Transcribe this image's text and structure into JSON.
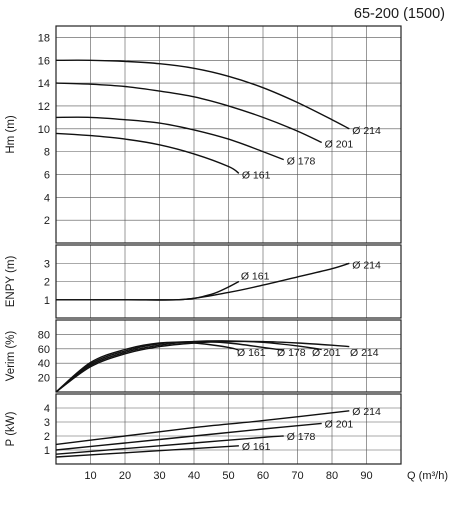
{
  "chart_data": [
    {
      "type": "line",
      "title": "65-200 (1500)",
      "ylabel": "Hm (m)",
      "xlim": [
        0,
        100
      ],
      "ylim": [
        0,
        19
      ],
      "y_ticks": [
        2,
        4,
        6,
        8,
        10,
        12,
        14,
        16,
        18
      ],
      "grid": true,
      "series": [
        {
          "name": "Ø 214",
          "x": [
            0,
            10,
            20,
            30,
            40,
            50,
            60,
            70,
            80,
            85
          ],
          "y": [
            16,
            16,
            15.9,
            15.7,
            15.3,
            14.6,
            13.6,
            12.3,
            10.8,
            10
          ]
        },
        {
          "name": "Ø 201",
          "x": [
            0,
            10,
            20,
            30,
            40,
            50,
            60,
            70,
            77
          ],
          "y": [
            14,
            13.9,
            13.7,
            13.3,
            12.8,
            12,
            11,
            9.8,
            8.8
          ]
        },
        {
          "name": "Ø 178",
          "x": [
            0,
            10,
            20,
            30,
            40,
            50,
            60,
            66
          ],
          "y": [
            11,
            11,
            10.8,
            10.5,
            9.9,
            9.1,
            8,
            7.3
          ]
        },
        {
          "name": "Ø 161",
          "x": [
            0,
            10,
            20,
            30,
            40,
            50,
            53
          ],
          "y": [
            9.6,
            9.4,
            9.1,
            8.6,
            7.8,
            6.7,
            6.1
          ]
        }
      ]
    },
    {
      "type": "line",
      "ylabel": "ENPY (m)",
      "xlim": [
        0,
        100
      ],
      "ylim": [
        0,
        4
      ],
      "y_ticks": [
        1,
        2,
        3
      ],
      "grid": true,
      "series": [
        {
          "name": "Ø 214",
          "x": [
            0,
            20,
            37,
            50,
            60,
            70,
            80,
            85
          ],
          "y": [
            1,
            1,
            1.02,
            1.4,
            1.8,
            2.25,
            2.7,
            3
          ]
        },
        {
          "name": "Ø 161",
          "x": [
            0,
            20,
            37,
            45,
            50,
            53
          ],
          "y": [
            1,
            1,
            1.02,
            1.3,
            1.7,
            2
          ]
        }
      ]
    },
    {
      "type": "line",
      "ylabel": "Verim (%)",
      "xlim": [
        0,
        100
      ],
      "ylim": [
        0,
        100
      ],
      "y_ticks": [
        20,
        40,
        60,
        80
      ],
      "grid": true,
      "series": [
        {
          "name": "Ø 214",
          "x": [
            0,
            10,
            20,
            30,
            40,
            50,
            60,
            70,
            80,
            85
          ],
          "y": [
            0,
            35,
            53,
            63,
            68,
            70,
            70,
            68,
            65,
            63
          ]
        },
        {
          "name": "Ø 201",
          "x": [
            0,
            10,
            20,
            30,
            40,
            50,
            60,
            70,
            77
          ],
          "y": [
            0,
            37,
            55,
            65,
            70,
            71,
            69,
            64,
            59
          ]
        },
        {
          "name": "Ø 178",
          "x": [
            0,
            10,
            20,
            30,
            40,
            50,
            60,
            66
          ],
          "y": [
            0,
            39,
            57,
            67,
            70,
            68,
            62,
            58
          ]
        },
        {
          "name": "Ø 161",
          "x": [
            0,
            10,
            20,
            30,
            40,
            50,
            53
          ],
          "y": [
            0,
            41,
            59,
            68,
            68,
            62,
            58
          ]
        }
      ]
    },
    {
      "type": "line",
      "ylabel": "P (kW)",
      "xlabel": "Q (m³/h)",
      "xlim": [
        0,
        100
      ],
      "ylim": [
        0,
        5
      ],
      "y_ticks": [
        1,
        2,
        3,
        4
      ],
      "x_ticks": [
        10,
        20,
        30,
        40,
        50,
        60,
        70,
        80,
        90
      ],
      "grid": true,
      "series": [
        {
          "name": "Ø 214",
          "x": [
            0,
            20,
            40,
            60,
            85
          ],
          "y": [
            1.4,
            2.0,
            2.6,
            3.1,
            3.8
          ]
        },
        {
          "name": "Ø 201",
          "x": [
            0,
            20,
            40,
            60,
            77
          ],
          "y": [
            1.0,
            1.5,
            2.0,
            2.5,
            2.9
          ]
        },
        {
          "name": "Ø 178",
          "x": [
            0,
            20,
            40,
            60,
            66
          ],
          "y": [
            0.7,
            1.1,
            1.5,
            1.9,
            2.0
          ]
        },
        {
          "name": "Ø 161",
          "x": [
            0,
            20,
            40,
            53
          ],
          "y": [
            0.5,
            0.8,
            1.1,
            1.3
          ]
        }
      ]
    }
  ]
}
